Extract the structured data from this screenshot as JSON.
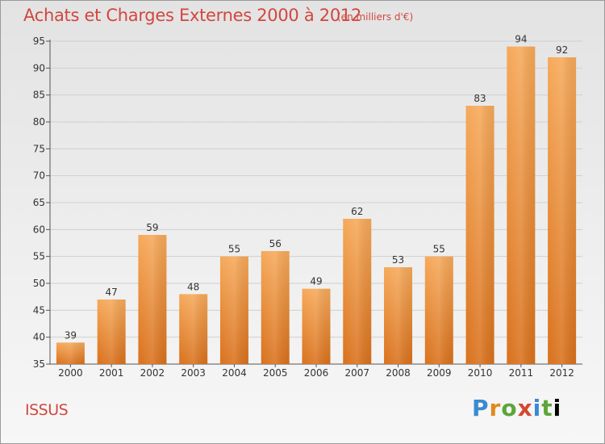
{
  "title": "Achats et Charges Externes 2000 à 2012",
  "subtitle": "(en milliers d'€)",
  "place": "ISSUS",
  "logo_text": "Proxiti",
  "colors": {
    "title": "#d2473f",
    "bar_light": "#f6a95a",
    "bar_dark": "#d9711c",
    "grid": "#cfcfcf"
  },
  "chart_data": {
    "type": "bar",
    "title": "Achats et Charges Externes 2000 à 2012",
    "subtitle": "(en milliers d'€)",
    "xlabel": "",
    "ylabel": "",
    "categories": [
      "2000",
      "2001",
      "2002",
      "2003",
      "2004",
      "2005",
      "2006",
      "2007",
      "2008",
      "2009",
      "2010",
      "2011",
      "2012"
    ],
    "values": [
      39,
      47,
      59,
      48,
      55,
      56,
      49,
      62,
      53,
      55,
      83,
      94,
      92
    ],
    "ylim": [
      35,
      95
    ],
    "yticks": [
      35,
      40,
      45,
      50,
      55,
      60,
      65,
      70,
      75,
      80,
      85,
      90,
      95
    ],
    "grid": true,
    "legend": "none"
  }
}
